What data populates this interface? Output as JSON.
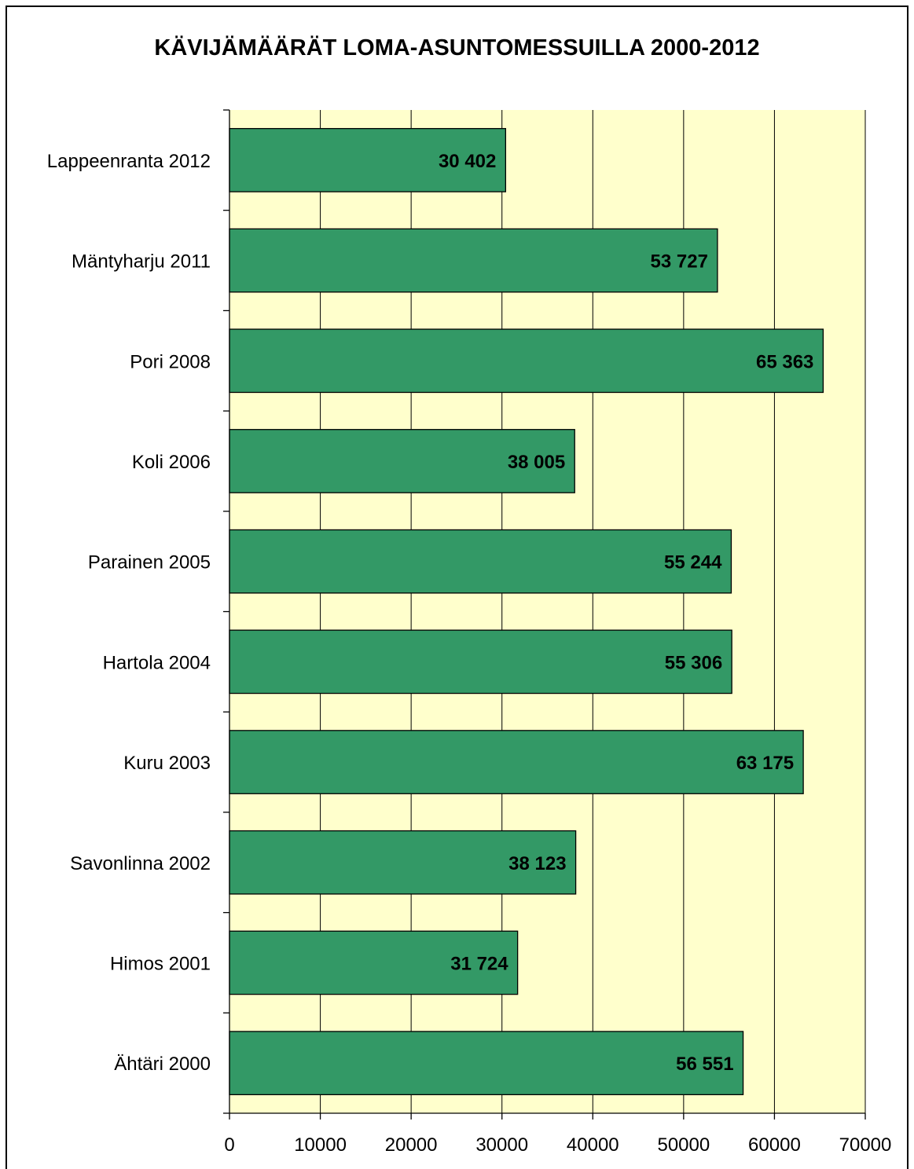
{
  "chart_data": {
    "type": "bar",
    "orientation": "horizontal",
    "title": "KÄVIJÄMÄÄRÄT LOMA-ASUNTOMESSUILLA 2000-2012",
    "xlabel": "",
    "ylabel": "",
    "categories": [
      "Lappeenranta 2012",
      "Mäntyharju 2011",
      "Pori 2008",
      "Koli 2006",
      "Parainen 2005",
      "Hartola 2004",
      "Kuru 2003",
      "Savonlinna 2002",
      "Himos 2001",
      "Ähtäri 2000"
    ],
    "values": [
      30402,
      53727,
      65363,
      38005,
      55244,
      55306,
      63175,
      38123,
      31724,
      56551
    ],
    "data_labels": [
      "30 402",
      "53 727",
      "65 363",
      "38 005",
      "55 244",
      "55 306",
      "63 175",
      "38 123",
      "31 724",
      "56 551"
    ],
    "xlim": [
      0,
      70000
    ],
    "ticks": [
      "0",
      "10000",
      "20000",
      "30000",
      "40000",
      "50000",
      "60000",
      "70000"
    ],
    "grid": true,
    "legend": "none",
    "colors": {
      "bar": "#339966",
      "plot_background": "#FFFFCC",
      "grid": "#000000"
    }
  }
}
